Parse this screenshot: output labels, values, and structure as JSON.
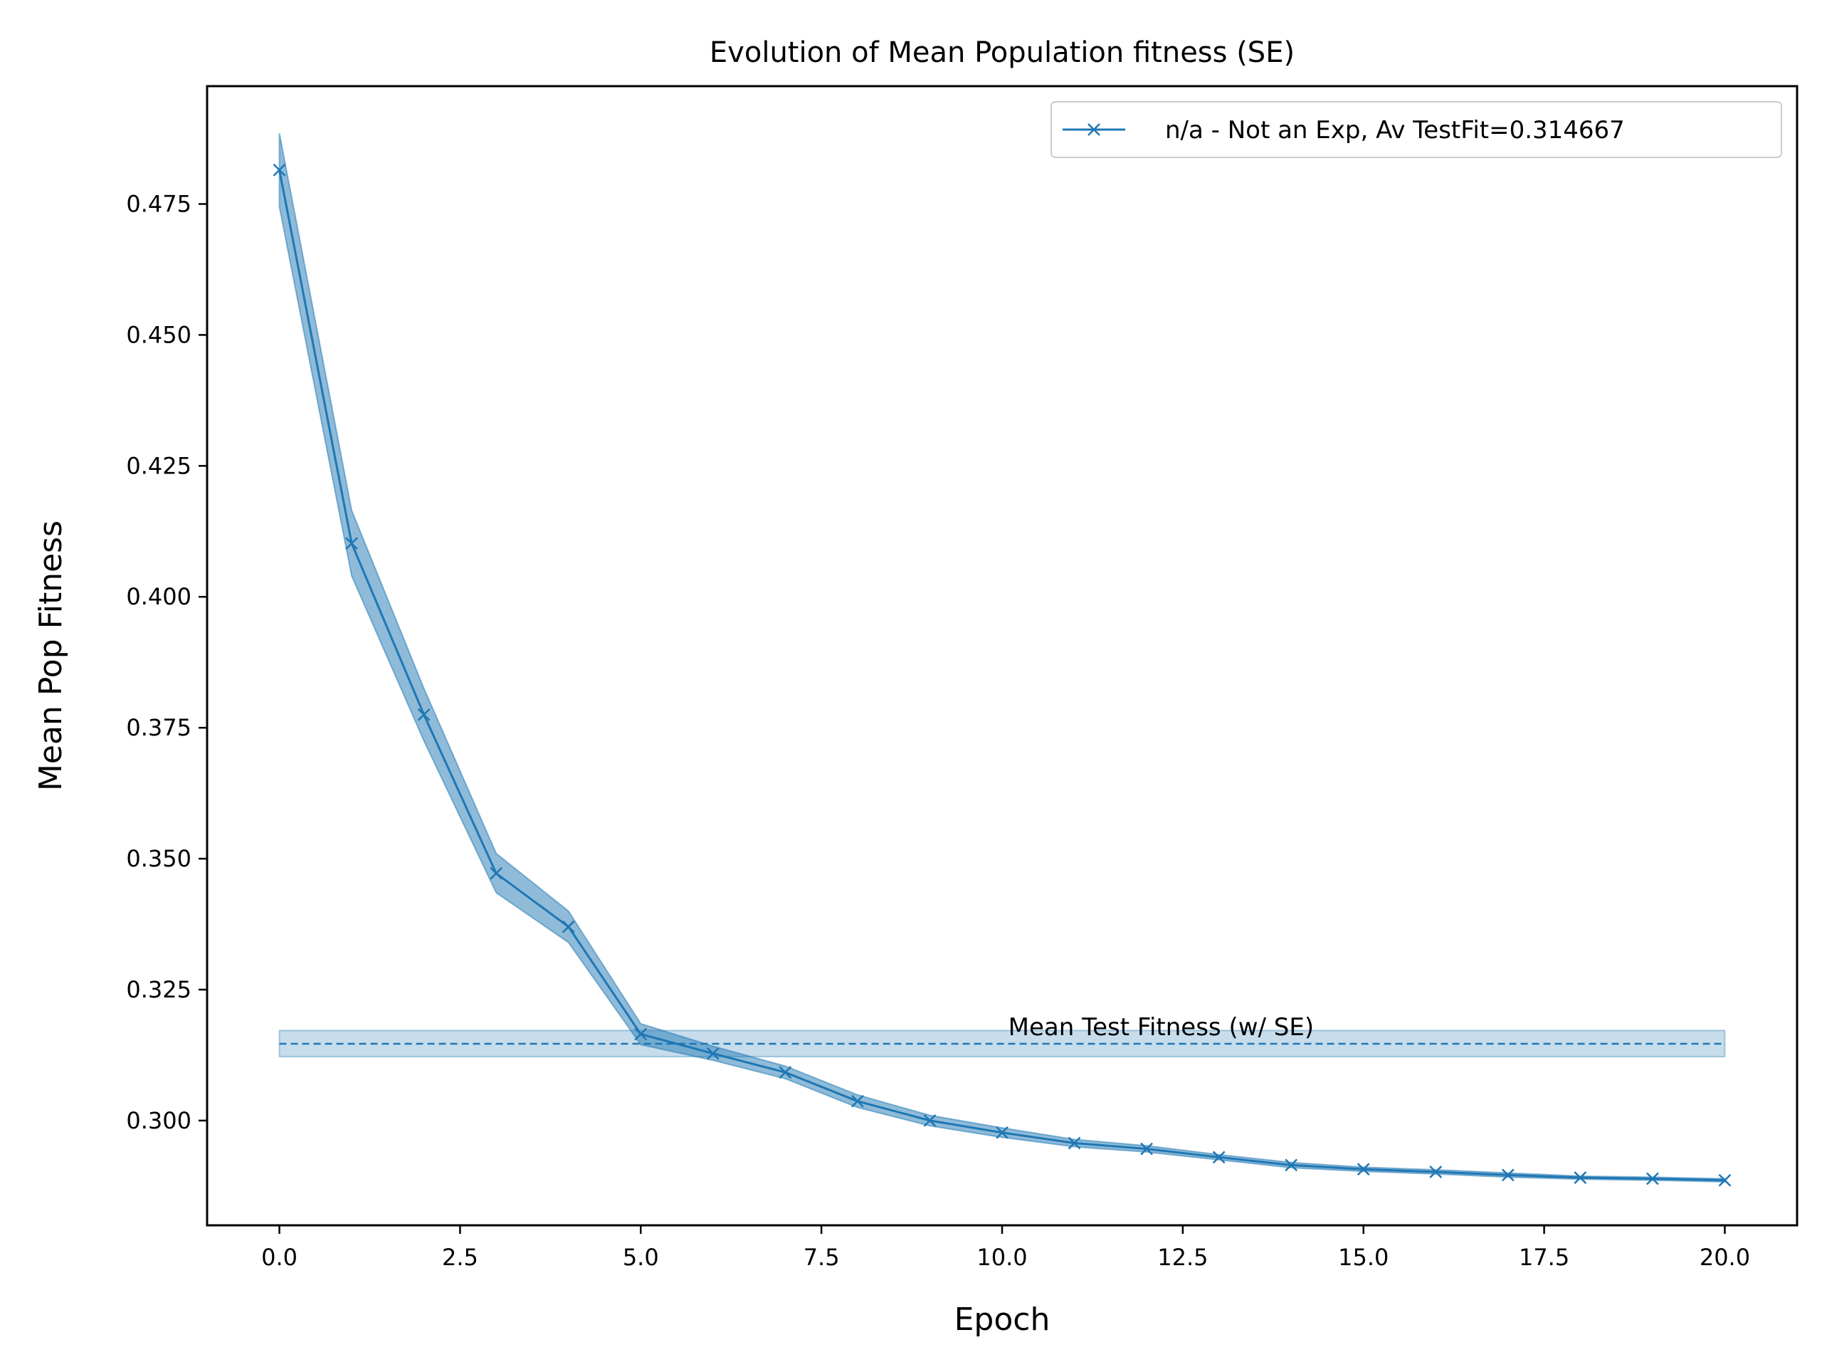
{
  "chart_data": {
    "type": "line",
    "title": "Evolution of Mean Population fitness (SE)",
    "xlabel": "Epoch",
    "ylabel": "Mean Pop Fitness",
    "xlim": [
      -1,
      21
    ],
    "ylim": [
      0.28,
      0.4975
    ],
    "xticks": [
      0,
      2.5,
      5,
      7.5,
      10,
      12.5,
      15,
      17.5,
      20
    ],
    "xtick_labels": [
      "0.0",
      "2.5",
      "5.0",
      "7.5",
      "10.0",
      "12.5",
      "15.0",
      "17.5",
      "20.0"
    ],
    "yticks": [
      0.3,
      0.325,
      0.35,
      0.375,
      0.4,
      0.425,
      0.45,
      0.475
    ],
    "ytick_labels": [
      "0.300",
      "0.325",
      "0.350",
      "0.375",
      "0.400",
      "0.425",
      "0.450",
      "0.475"
    ],
    "grid": false,
    "legend_position": "top-right",
    "series": [
      {
        "name": "n/a - Not an Exp, Av TestFit=0.314667",
        "color": "#1f77b4",
        "marker": "x",
        "x": [
          0,
          1,
          2,
          3,
          4,
          5,
          6,
          7,
          8,
          9,
          10,
          11,
          12,
          13,
          14,
          15,
          16,
          17,
          18,
          19,
          20
        ],
        "y": [
          0.4815,
          0.4102,
          0.3775,
          0.3472,
          0.337,
          0.3165,
          0.3128,
          0.3092,
          0.3037,
          0.3,
          0.2977,
          0.2957,
          0.2946,
          0.293,
          0.2915,
          0.2907,
          0.2902,
          0.2896,
          0.2891,
          0.2889,
          0.2886
        ],
        "se_lower": [
          0.4745,
          0.404,
          0.3725,
          0.3435,
          0.334,
          0.3145,
          0.3115,
          0.308,
          0.3025,
          0.299,
          0.2968,
          0.295,
          0.294,
          0.2925,
          0.291,
          0.2903,
          0.2898,
          0.2892,
          0.2888,
          0.2886,
          0.2883
        ],
        "se_upper": [
          0.4885,
          0.4165,
          0.3825,
          0.351,
          0.34,
          0.3185,
          0.3142,
          0.3104,
          0.3049,
          0.301,
          0.2986,
          0.2964,
          0.2952,
          0.2935,
          0.292,
          0.2911,
          0.2906,
          0.29,
          0.2894,
          0.2892,
          0.2889
        ]
      }
    ],
    "reference_line": {
      "label": "Mean Test Fitness (w/ SE)",
      "value": 0.314667,
      "se_lower": 0.3122,
      "se_upper": 0.3172,
      "x_range": [
        0,
        20
      ],
      "style": "dashed",
      "color": "#1f77b4"
    }
  }
}
